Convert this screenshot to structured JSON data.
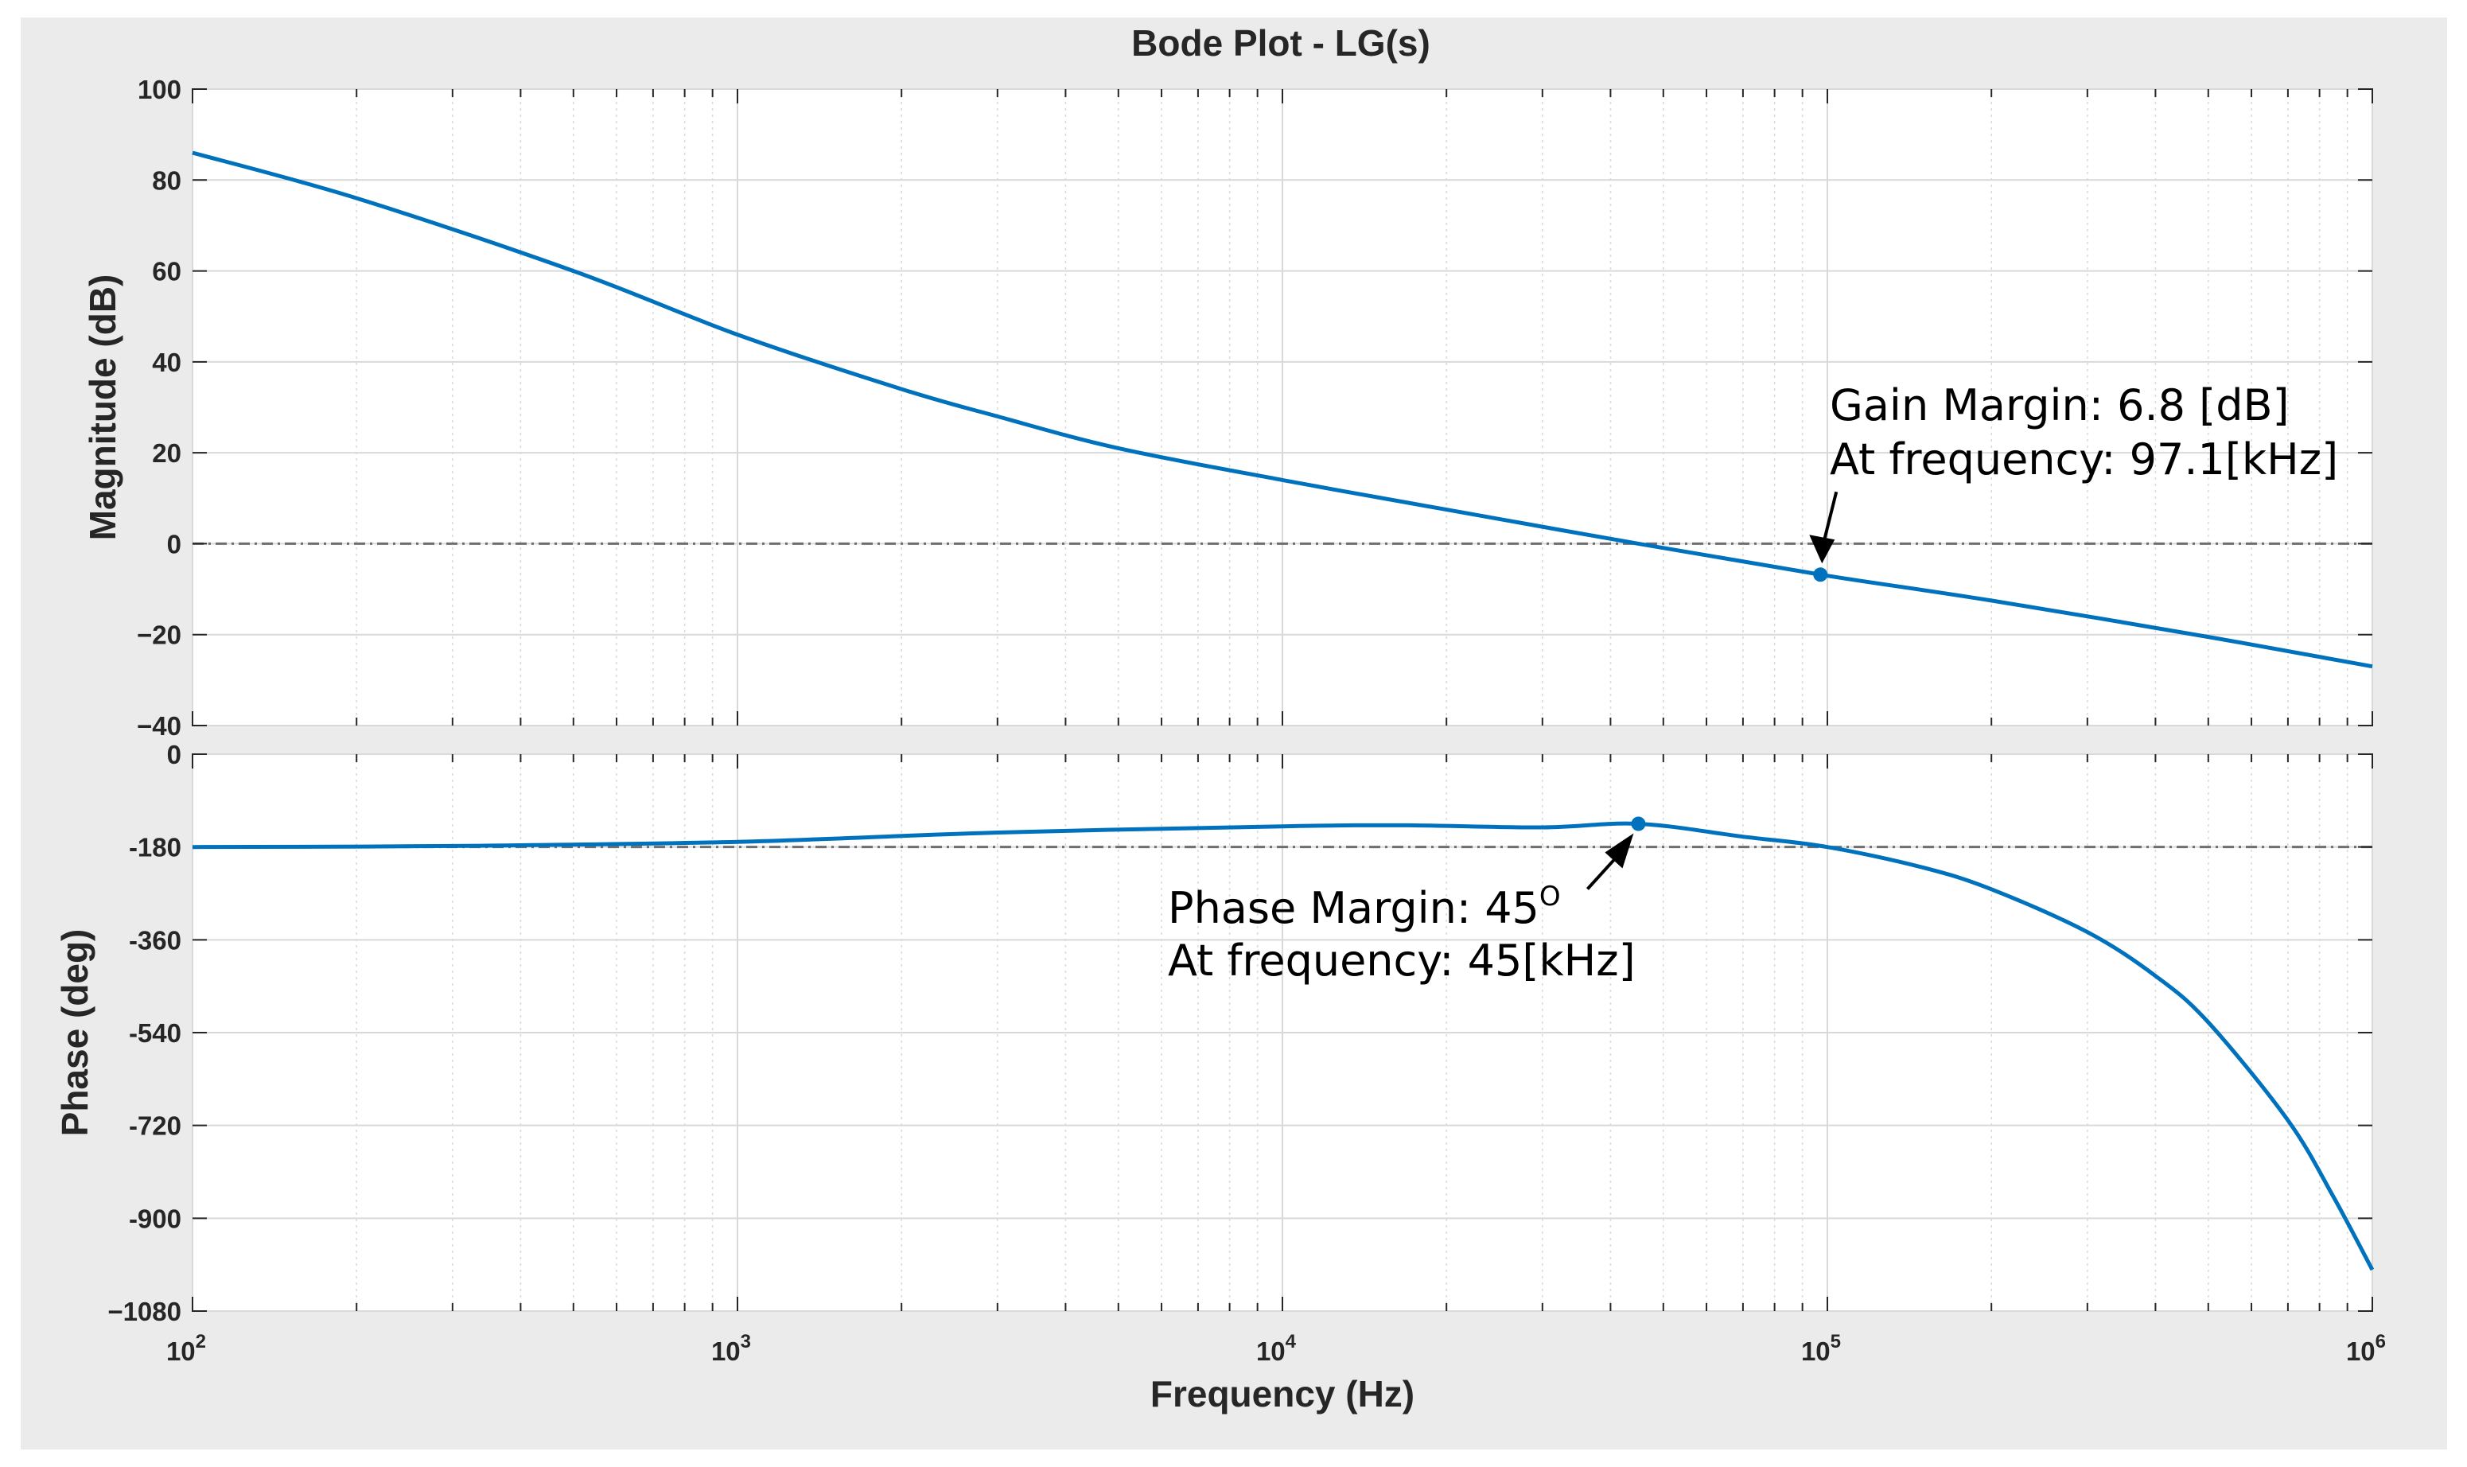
{
  "chart_data": {
    "type": "line",
    "title": "Bode Plot - LG(s)",
    "xlabel": "Frequency  (Hz)",
    "xscale": "log",
    "xlim": [
      100,
      1000000
    ],
    "xticks": [
      {
        "value": 100,
        "base": "10",
        "exp": "2"
      },
      {
        "value": 1000,
        "base": "10",
        "exp": "3"
      },
      {
        "value": 10000,
        "base": "10",
        "exp": "4"
      },
      {
        "value": 100000,
        "base": "10",
        "exp": "5"
      },
      {
        "value": 1000000,
        "base": "10",
        "exp": "6"
      }
    ],
    "grid": true,
    "colors": {
      "line": "#0072BD",
      "background": "#ebebeb",
      "axes": "#ffffff",
      "grid": "#d9d9d9",
      "reference": "#6e6e6e"
    },
    "panels": [
      {
        "ylabel": "Magnitude (dB)",
        "ylim": [
          -40,
          100
        ],
        "yticks": [
          100,
          80,
          60,
          40,
          20,
          0,
          -20,
          -40
        ],
        "ytick_labels": [
          "100",
          "80",
          "60",
          "40",
          "20",
          "0",
          "−20",
          "−40"
        ],
        "reference_line": 0,
        "series": [
          {
            "x": [
              100,
              200,
              500,
              1000,
              2000,
              3000,
              5000,
              10000,
              20000,
              45000,
              97100,
              200000,
              500000,
              1000000
            ],
            "values": [
              86,
              76,
              60,
              46,
              34,
              28,
              21,
              14,
              7.5,
              0,
              -6.8,
              -12.5,
              -20.5,
              -27
            ]
          }
        ],
        "marker": {
          "x": 97100,
          "y": -6.8
        },
        "annotation": {
          "line1": "Gain Margin: 6.8 [dB]",
          "line2": "At frequency: 97.1[kHz]"
        }
      },
      {
        "ylabel": "Phase (deg)",
        "ylim": [
          -1080,
          0
        ],
        "yticks": [
          0,
          -180,
          -360,
          -540,
          -720,
          -900,
          -1080
        ],
        "ytick_labels": [
          "0",
          "-180",
          "-360",
          "-540",
          "-720",
          "-900",
          "−1080"
        ],
        "reference_line": -180,
        "series": [
          {
            "x": [
              100,
              300,
              1000,
              3000,
              10000,
              17000,
              30000,
              45000,
              70000,
              100000,
              150000,
              200000,
              300000,
              400000,
              500000,
              700000,
              850000,
              1000000
            ],
            "values": [
              -180,
              -178,
              -170,
              -152,
              -140,
              -138,
              -142,
              -135,
              -160,
              -180,
              -220,
              -262,
              -345,
              -430,
              -520,
              -710,
              -860,
              -1000
            ]
          }
        ],
        "marker": {
          "x": 45000,
          "y": -135
        },
        "annotation": {
          "line1": "Phase Margin: 45",
          "line1_sup": "O",
          "line2": "At frequency: 45[kHz]"
        }
      }
    ]
  }
}
